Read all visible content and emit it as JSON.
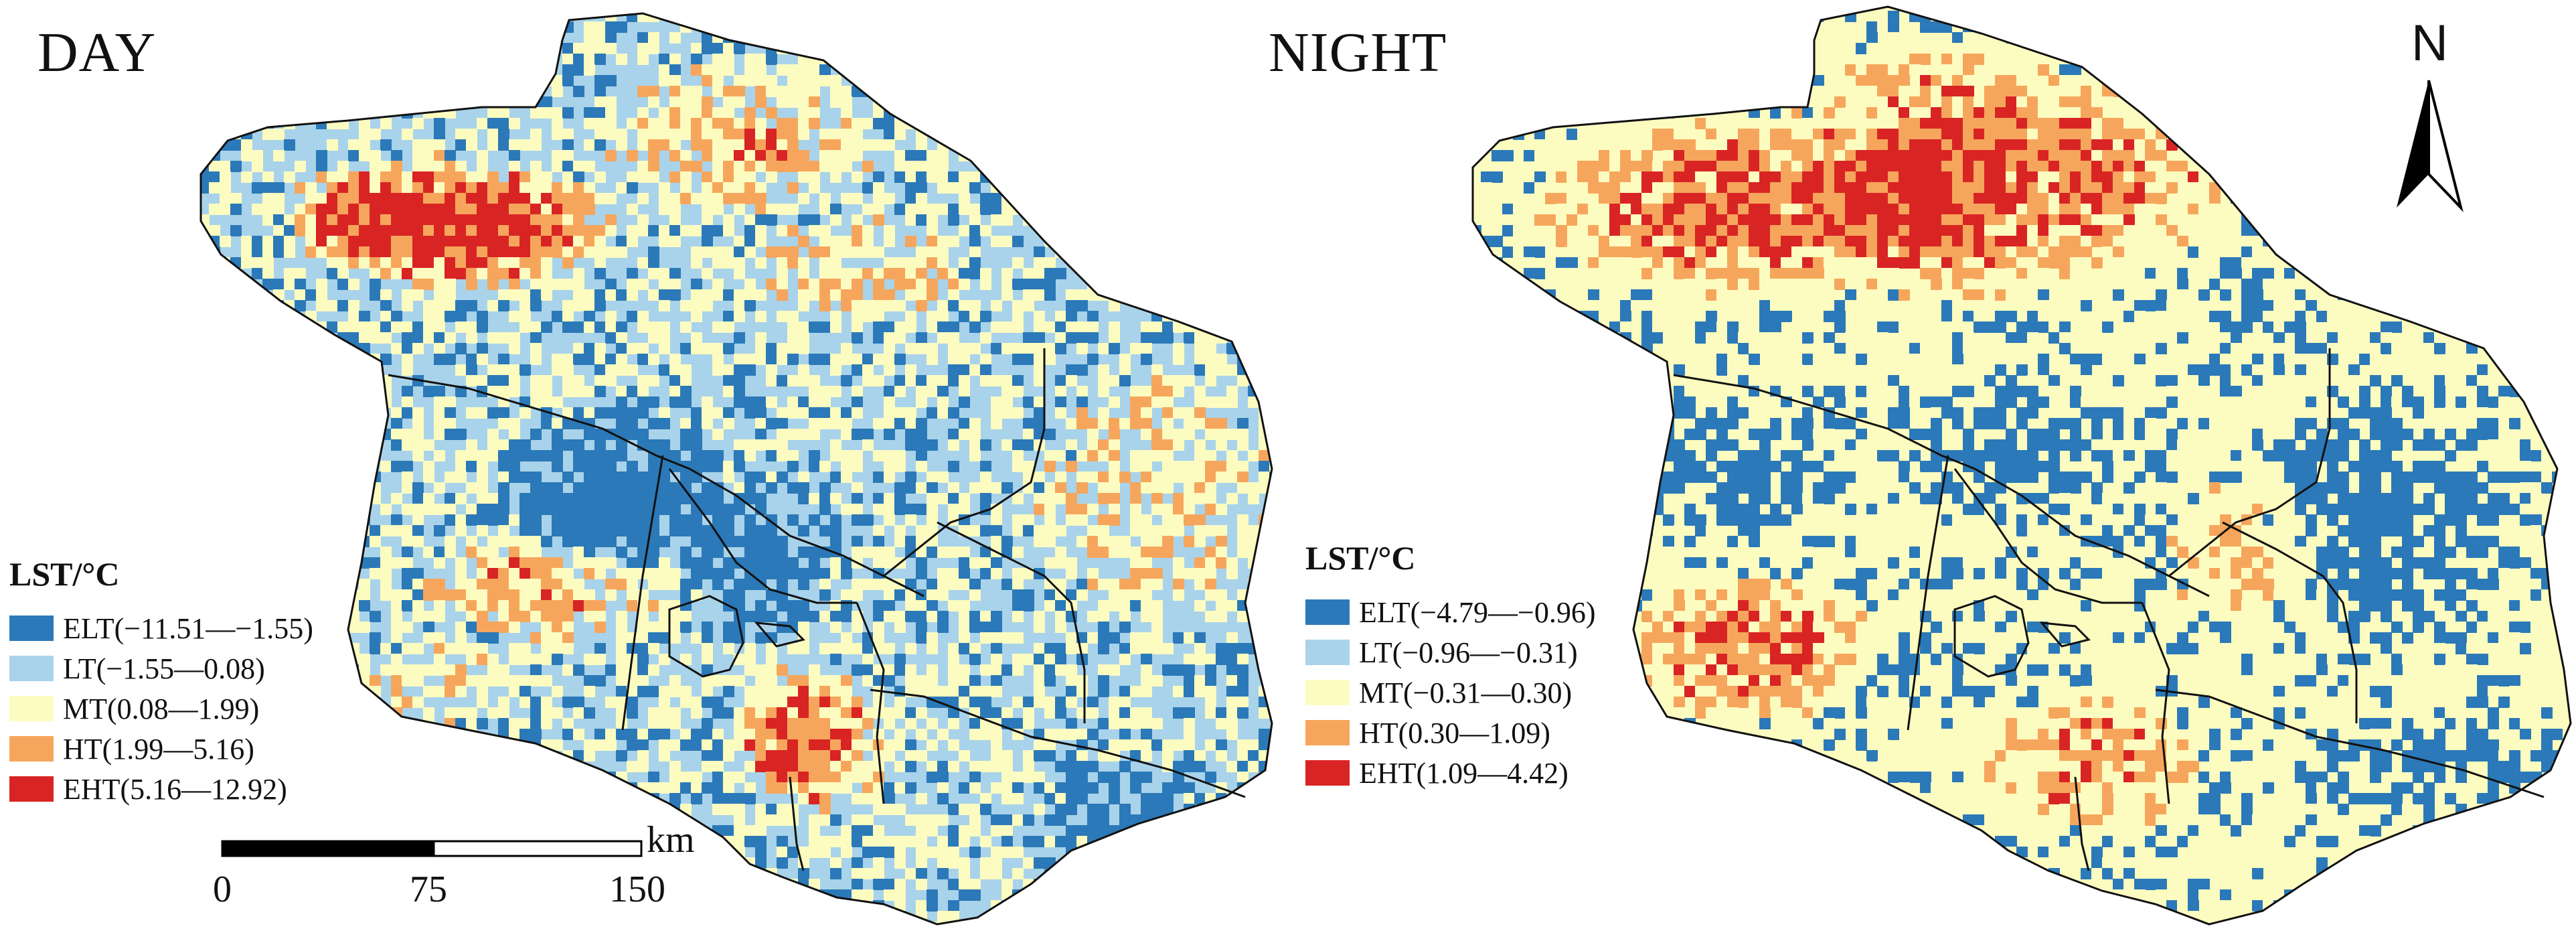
{
  "panels": {
    "day": {
      "title": "DAY",
      "legend": {
        "title": "LST/°C",
        "classes": [
          {
            "label": "ELT(−11.51—−1.55)",
            "color": "#2b79b8"
          },
          {
            "label": "LT(−1.55—0.08)",
            "color": "#a9d3ea"
          },
          {
            "label": "MT(0.08—1.99)",
            "color": "#fdfcc0"
          },
          {
            "label": "HT(1.99—5.16)",
            "color": "#f6a65c"
          },
          {
            "label": "EHT(5.16—12.92)",
            "color": "#d92424"
          }
        ]
      }
    },
    "night": {
      "title": "NIGHT",
      "legend": {
        "title": "LST/°C",
        "classes": [
          {
            "label": "ELT(−4.79—−0.96)",
            "color": "#2b79b8"
          },
          {
            "label": "LT(−0.96—−0.31)",
            "color": "#a9d3ea"
          },
          {
            "label": "MT(−0.31—0.30)",
            "color": "#fdfcc0"
          },
          {
            "label": "HT(0.30—1.09)",
            "color": "#f6a65c"
          },
          {
            "label": "EHT(1.09—4.42)",
            "color": "#d92424"
          }
        ]
      }
    }
  },
  "scale_bar": {
    "unit": "km",
    "ticks": [
      "0",
      "75",
      "150"
    ]
  },
  "north_arrow": {
    "label": "N"
  },
  "colors": {
    "boundary": "#111111",
    "background": "#ffffff"
  }
}
